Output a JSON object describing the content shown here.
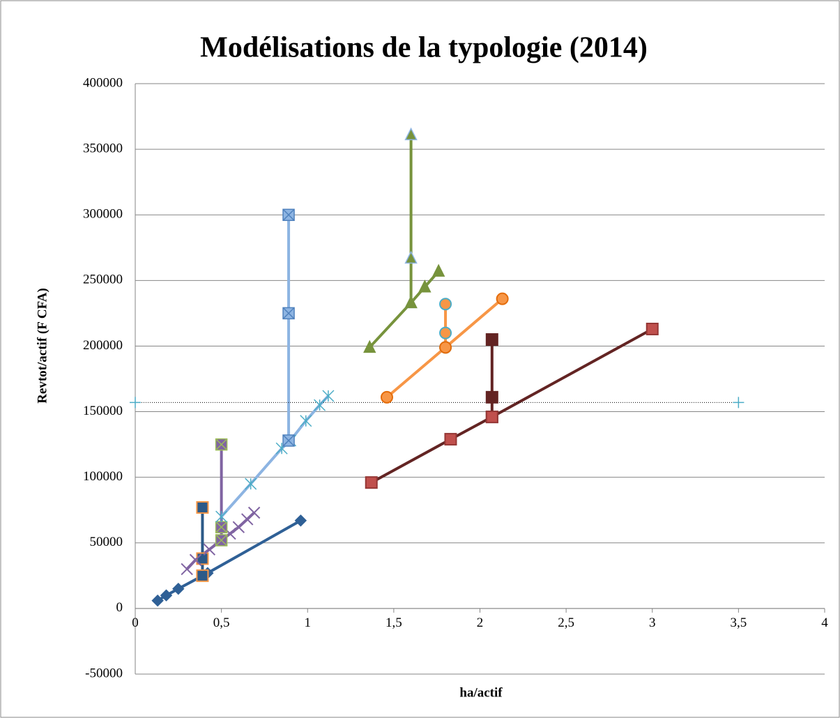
{
  "chart_data": {
    "type": "scatter",
    "title": "Modélisations de la typologie (2014)",
    "xlabel": "ha/actif",
    "ylabel": "Revtot/actif (F CFA)",
    "xlim": [
      0,
      4
    ],
    "ylim": [
      -50000,
      400000
    ],
    "xticks": [
      0,
      {
        "value": 0.5,
        "label": "0,5"
      },
      1,
      {
        "value": 1.5,
        "label": "1,5"
      },
      2,
      {
        "value": 2.5,
        "label": "2,5"
      },
      3,
      {
        "value": 3.5,
        "label": "3,5"
      },
      4
    ],
    "yticks": [
      -50000,
      0,
      50000,
      100000,
      150000,
      200000,
      250000,
      300000,
      350000,
      400000
    ],
    "grid": true,
    "series": [
      {
        "color": "#2f6096",
        "marker": "diamond",
        "edge": "#2f6096",
        "x": [
          0.13,
          0.18,
          0.25,
          0.42,
          0.96
        ],
        "values": [
          6000,
          10000,
          15000,
          27000,
          67000
        ]
      },
      {
        "color": "#2c5a88",
        "marker": "square",
        "edge": "#f79646",
        "x": [
          0.39,
          0.39,
          0.39
        ],
        "values": [
          25000,
          38000,
          77000
        ]
      },
      {
        "color": "#8064a2",
        "marker": "x",
        "edge": "#8064a2",
        "x": [
          0.3,
          0.35,
          0.43,
          0.5,
          0.55,
          0.6,
          0.65,
          0.69
        ],
        "values": [
          30000,
          37000,
          45000,
          52000,
          57000,
          62000,
          68000,
          73000
        ]
      },
      {
        "color": "#8064a2",
        "marker": "square-x",
        "edge": "#9bbb59",
        "x": [
          0.5,
          0.5,
          0.5
        ],
        "values": [
          52000,
          62000,
          125000
        ]
      },
      {
        "color": "#8db4e2",
        "marker": "star",
        "edge": "#4bacc6",
        "x": [
          0.5,
          0.67,
          0.85,
          0.9,
          0.99,
          1.07,
          1.12
        ],
        "values": [
          70000,
          95000,
          122000,
          128000,
          143000,
          155000,
          162000
        ]
      },
      {
        "color": "#8db4e2",
        "marker": "square-x",
        "edge": "#4f81bd",
        "x": [
          0.89,
          0.89,
          0.89
        ],
        "values": [
          128000,
          225000,
          300000
        ]
      },
      {
        "color": "#77933c",
        "marker": "triangle",
        "edge": "#8db4e2",
        "x": [
          1.6,
          1.6,
          1.6
        ],
        "values": [
          233000,
          267000,
          361000
        ]
      },
      {
        "color": "#77933c",
        "marker": "triangle",
        "edge": "#77933c",
        "x": [
          1.36,
          1.6,
          1.68,
          1.76
        ],
        "values": [
          199000,
          233000,
          245000,
          257000
        ]
      },
      {
        "color": "#f79646",
        "marker": "circle",
        "edge": "#4bacc6",
        "x": [
          1.8,
          1.8,
          1.8
        ],
        "values": [
          199000,
          210000,
          232000
        ]
      },
      {
        "color": "#f79646",
        "marker": "circle",
        "edge": "#e46c0a",
        "x": [
          1.46,
          1.8,
          2.13
        ],
        "values": [
          161000,
          199000,
          236000
        ]
      },
      {
        "color": "#632423",
        "marker": "square",
        "edge": "#632423",
        "x": [
          2.07,
          2.07,
          2.07
        ],
        "values": [
          146000,
          161000,
          205000
        ]
      },
      {
        "color": "#632423",
        "marker": "square",
        "edge": "#953735",
        "fill": "#c0504d",
        "x": [
          1.37,
          1.83,
          2.07,
          3.0
        ],
        "values": [
          96000,
          129000,
          146000,
          213000
        ]
      },
      {
        "color": "#000000",
        "marker": "plus",
        "edge": "#4bacc6",
        "dash": "dotted",
        "x": [
          0,
          3.5
        ],
        "values": [
          157000,
          157000
        ]
      }
    ]
  }
}
